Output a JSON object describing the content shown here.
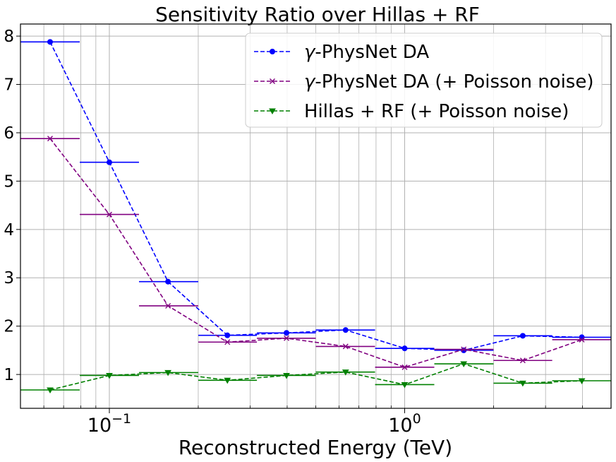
{
  "chart_data": {
    "type": "line",
    "title": "Sensitivity Ratio over Hillas + RF",
    "xlabel": "Reconstructed Energy (TeV)",
    "ylabel": "",
    "xscale": "log",
    "xlim": [
      0.05,
      5.0
    ],
    "ylim": [
      0.3,
      8.25
    ],
    "grid": "major and minor",
    "legend_position": "top-right",
    "x_ticks": [
      {
        "value": 0.1,
        "base": "10",
        "exp": "−1"
      },
      {
        "value": 1.0,
        "base": "10",
        "exp": "0"
      }
    ],
    "y_ticks": [
      "1",
      "2",
      "3",
      "4",
      "5",
      "6",
      "7",
      "8"
    ],
    "bin_edges": [
      0.05,
      0.0794,
      0.126,
      0.2,
      0.316,
      0.5,
      0.794,
      1.26,
      2.0,
      3.16,
      5.0
    ],
    "x": [
      0.063,
      0.1,
      0.158,
      0.251,
      0.398,
      0.631,
      1.0,
      1.585,
      2.512,
      3.981
    ],
    "series": [
      {
        "name": "γ-PhysNet DA",
        "legend_label": {
          "greek": "γ",
          "rest": "-PhysNet DA"
        },
        "color": "#0000ff",
        "marker": "circle",
        "values": [
          7.88,
          5.39,
          2.92,
          1.81,
          1.86,
          1.92,
          1.54,
          1.5,
          1.8,
          1.77
        ]
      },
      {
        "name": "γ-PhysNet DA (+ Poisson noise)",
        "legend_label": {
          "greek": "γ",
          "rest": "-PhysNet DA (+ Poisson noise)"
        },
        "color": "#800080",
        "marker": "x",
        "values": [
          5.88,
          4.31,
          2.42,
          1.67,
          1.75,
          1.58,
          1.15,
          1.52,
          1.29,
          1.72
        ]
      },
      {
        "name": "Hillas + RF (+ Poisson noise)",
        "legend_label": {
          "greek": "",
          "rest": "Hillas + RF (+ Poisson noise)"
        },
        "color": "#008000",
        "marker": "triangle-down",
        "values": [
          0.68,
          0.98,
          1.04,
          0.88,
          0.98,
          1.05,
          0.79,
          1.22,
          0.82,
          0.87
        ]
      }
    ]
  }
}
